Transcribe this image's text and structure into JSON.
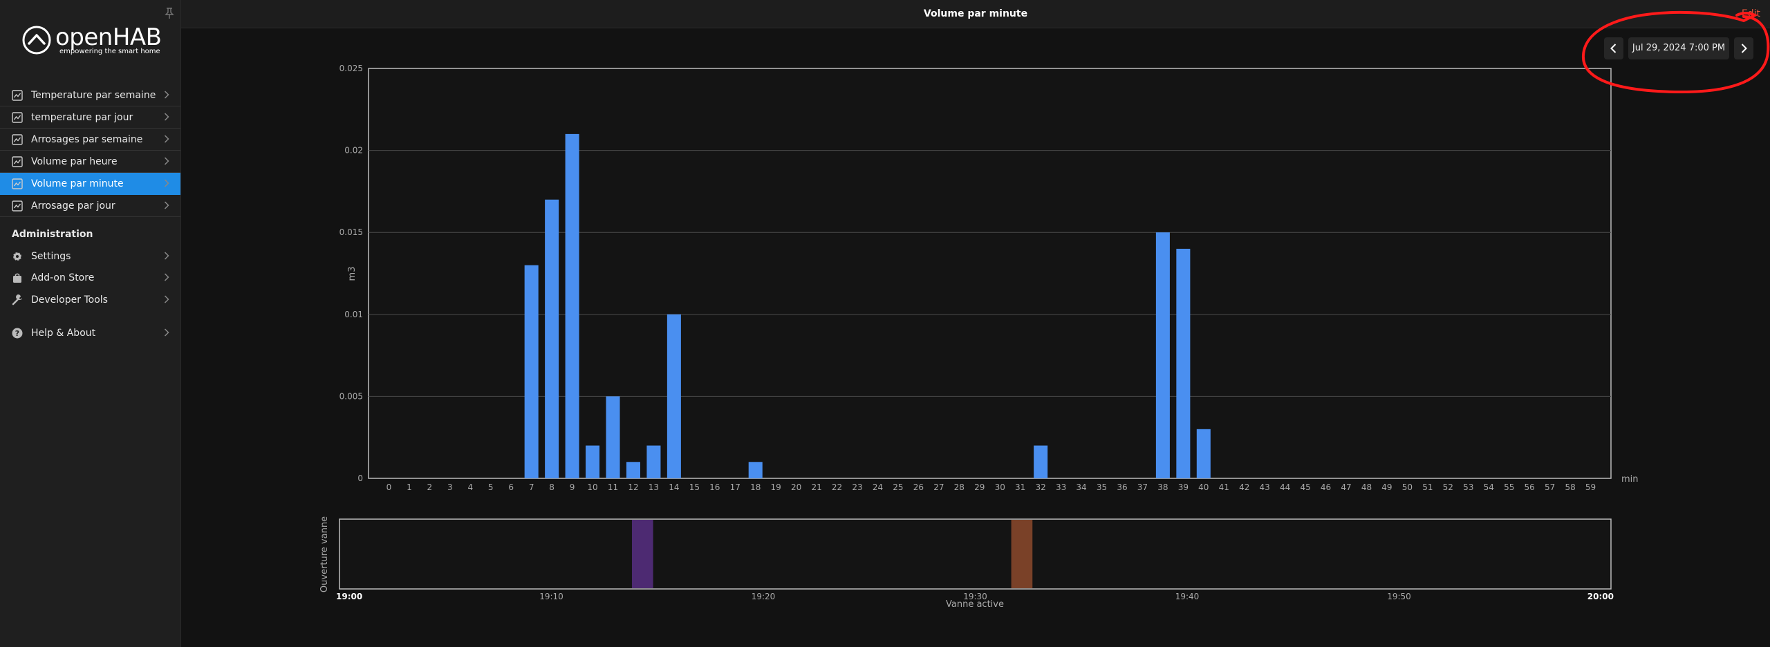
{
  "app": {
    "logo_text": "openHAB",
    "logo_tagline": "empowering the smart home"
  },
  "sidebar": {
    "items": [
      {
        "label": "Temperature par semaine",
        "icon": "chart-icon",
        "active": false
      },
      {
        "label": "temperature par jour",
        "icon": "chart-icon",
        "active": false
      },
      {
        "label": "Arrosages par semaine",
        "icon": "chart-icon",
        "active": false
      },
      {
        "label": "Volume par heure",
        "icon": "chart-icon",
        "active": false
      },
      {
        "label": "Volume par minute",
        "icon": "chart-icon",
        "active": true
      },
      {
        "label": "Arrosage par jour",
        "icon": "chart-icon",
        "active": false
      }
    ],
    "admin_title": "Administration",
    "admin_items": [
      {
        "label": "Settings",
        "icon": "gear-icon"
      },
      {
        "label": "Add-on Store",
        "icon": "bag-icon"
      },
      {
        "label": "Developer Tools",
        "icon": "wrench-icon"
      }
    ],
    "help_label": "Help & About",
    "help_icon": "question-icon"
  },
  "header": {
    "title": "Volume par minute",
    "edit_label": "Edit"
  },
  "date_nav": {
    "date_label": "Jul 29, 2024 7:00 PM"
  },
  "colors": {
    "accent": "#1f8ce6",
    "bar": "#4a8ff0",
    "edit": "#e0563c",
    "annotation": "#ff1a1a",
    "band_purple": "#4d2a72",
    "band_brown": "#7a4128"
  },
  "chart_data": [
    {
      "type": "bar",
      "ylabel": "m3",
      "xlabel": "min",
      "ylim": [
        0,
        0.025
      ],
      "yticks": [
        "0",
        "0.005",
        "0.01",
        "0.015",
        "0.02",
        "0.025"
      ],
      "categories": [
        "0",
        "1",
        "2",
        "3",
        "4",
        "5",
        "6",
        "7",
        "8",
        "9",
        "10",
        "11",
        "12",
        "13",
        "14",
        "15",
        "16",
        "17",
        "18",
        "19",
        "20",
        "21",
        "22",
        "23",
        "24",
        "25",
        "26",
        "27",
        "28",
        "29",
        "30",
        "31",
        "32",
        "33",
        "34",
        "35",
        "36",
        "37",
        "38",
        "39",
        "40",
        "41",
        "42",
        "43",
        "44",
        "45",
        "46",
        "47",
        "48",
        "49",
        "50",
        "51",
        "52",
        "53",
        "54",
        "55",
        "56",
        "57",
        "58",
        "59"
      ],
      "values": [
        0,
        0,
        0,
        0,
        0,
        0,
        0,
        0.013,
        0.017,
        0.021,
        0.002,
        0.005,
        0.001,
        0.002,
        0.01,
        0,
        0,
        0,
        0.001,
        0,
        0,
        0,
        0,
        0,
        0,
        0,
        0,
        0,
        0,
        0,
        0,
        0,
        0.002,
        0,
        0,
        0,
        0,
        0,
        0.015,
        0.014,
        0.003,
        0,
        0,
        0,
        0,
        0,
        0,
        0,
        0,
        0,
        0,
        0,
        0,
        0,
        0,
        0,
        0,
        0,
        0,
        0
      ],
      "grid": true
    },
    {
      "type": "timeline",
      "ylabel": "Ouverture vanne",
      "xlabel": "Vanne active",
      "x_range": [
        "19:00",
        "20:00"
      ],
      "x_ticks": [
        {
          "label": "19:00",
          "minute": 0,
          "bold": true
        },
        {
          "label": "19:10",
          "minute": 10,
          "bold": false
        },
        {
          "label": "19:20",
          "minute": 20,
          "bold": false
        },
        {
          "label": "19:30",
          "minute": 30,
          "bold": false
        },
        {
          "label": "19:40",
          "minute": 40,
          "bold": false
        },
        {
          "label": "19:50",
          "minute": 50,
          "bold": false
        },
        {
          "label": "20:00",
          "minute": 60,
          "bold": true
        }
      ],
      "bands": [
        {
          "start_minute": 13.8,
          "end_minute": 14.8,
          "color": "#4d2a72"
        },
        {
          "start_minute": 31.7,
          "end_minute": 32.7,
          "color": "#7a4128"
        }
      ]
    }
  ]
}
